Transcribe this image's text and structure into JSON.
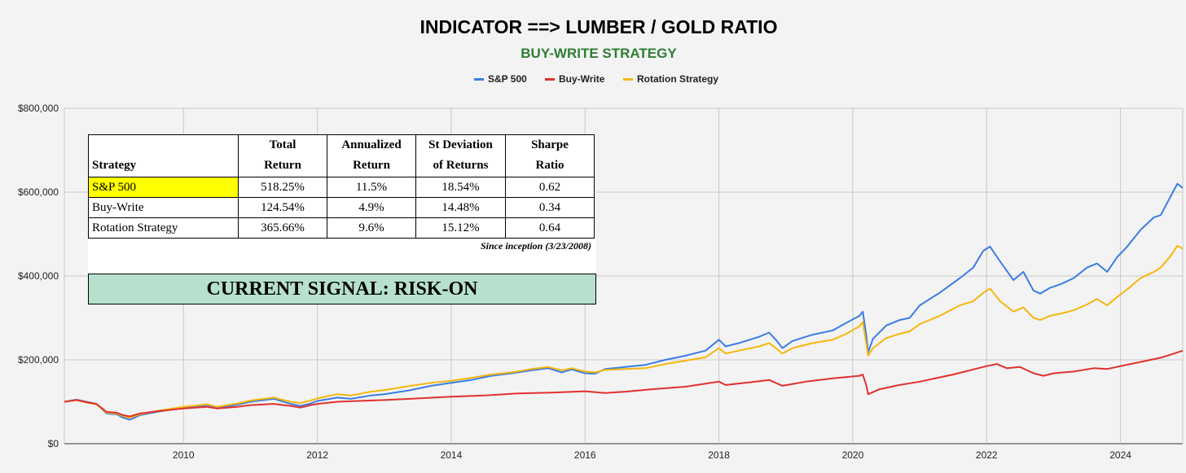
{
  "colors": {
    "background": "#f3f3f3",
    "sp500": "#3b7de4",
    "buywrite": "#e0312f",
    "rotation": "#f5b70d",
    "subtitle": "#2e7d32",
    "signal_bg": "#b7e1cd",
    "highlight": "#ffff00"
  },
  "chart_data": {
    "type": "line",
    "title": "INDICATOR ==> LUMBER / GOLD RATIO",
    "subtitle": "BUY-WRITE STRATEGY",
    "legend_position": "top-center",
    "grid": true,
    "xlim": [
      2008.22,
      2024.93
    ],
    "ylim": [
      0,
      800000
    ],
    "x_ticks": [
      2010,
      2012,
      2014,
      2016,
      2018,
      2020,
      2022,
      2024
    ],
    "x_tick_labels": [
      "2010",
      "2012",
      "2014",
      "2016",
      "2018",
      "2020",
      "2022",
      "2024"
    ],
    "y_ticks": [
      0,
      200000,
      400000,
      600000,
      800000
    ],
    "y_tick_labels": [
      "$0",
      "$200,000",
      "$400,000",
      "$600,000",
      "$800,000"
    ],
    "series": [
      {
        "name": "S&P 500",
        "color": "#3b7de4",
        "points": [
          [
            2008.22,
            100000
          ],
          [
            2008.4,
            105000
          ],
          [
            2008.55,
            100000
          ],
          [
            2008.7,
            95000
          ],
          [
            2008.85,
            72000
          ],
          [
            2009.0,
            70000
          ],
          [
            2009.1,
            62000
          ],
          [
            2009.2,
            57000
          ],
          [
            2009.35,
            68000
          ],
          [
            2009.6,
            76000
          ],
          [
            2010.0,
            86000
          ],
          [
            2010.35,
            92000
          ],
          [
            2010.5,
            84000
          ],
          [
            2010.8,
            93000
          ],
          [
            2011.0,
            100000
          ],
          [
            2011.35,
            107000
          ],
          [
            2011.6,
            95000
          ],
          [
            2011.75,
            90000
          ],
          [
            2011.9,
            96000
          ],
          [
            2012.0,
            102000
          ],
          [
            2012.3,
            110000
          ],
          [
            2012.5,
            107000
          ],
          [
            2012.8,
            115000
          ],
          [
            2013.0,
            118000
          ],
          [
            2013.4,
            128000
          ],
          [
            2013.7,
            138000
          ],
          [
            2014.0,
            145000
          ],
          [
            2014.3,
            152000
          ],
          [
            2014.6,
            162000
          ],
          [
            2014.9,
            168000
          ],
          [
            2015.2,
            175000
          ],
          [
            2015.45,
            180000
          ],
          [
            2015.65,
            170000
          ],
          [
            2015.8,
            177000
          ],
          [
            2016.0,
            168000
          ],
          [
            2016.15,
            167000
          ],
          [
            2016.3,
            178000
          ],
          [
            2016.6,
            183000
          ],
          [
            2016.9,
            188000
          ],
          [
            2017.2,
            200000
          ],
          [
            2017.5,
            210000
          ],
          [
            2017.8,
            222000
          ],
          [
            2018.0,
            248000
          ],
          [
            2018.1,
            232000
          ],
          [
            2018.3,
            240000
          ],
          [
            2018.6,
            255000
          ],
          [
            2018.75,
            265000
          ],
          [
            2018.85,
            248000
          ],
          [
            2018.95,
            228000
          ],
          [
            2019.1,
            245000
          ],
          [
            2019.4,
            260000
          ],
          [
            2019.7,
            270000
          ],
          [
            2019.9,
            288000
          ],
          [
            2020.1,
            305000
          ],
          [
            2020.15,
            315000
          ],
          [
            2020.2,
            260000
          ],
          [
            2020.23,
            218000
          ],
          [
            2020.3,
            250000
          ],
          [
            2020.5,
            282000
          ],
          [
            2020.7,
            295000
          ],
          [
            2020.85,
            300000
          ],
          [
            2021.0,
            330000
          ],
          [
            2021.3,
            360000
          ],
          [
            2021.6,
            395000
          ],
          [
            2021.8,
            420000
          ],
          [
            2021.95,
            460000
          ],
          [
            2022.05,
            470000
          ],
          [
            2022.2,
            435000
          ],
          [
            2022.4,
            390000
          ],
          [
            2022.55,
            410000
          ],
          [
            2022.7,
            365000
          ],
          [
            2022.8,
            358000
          ],
          [
            2022.95,
            372000
          ],
          [
            2023.1,
            380000
          ],
          [
            2023.3,
            395000
          ],
          [
            2023.5,
            420000
          ],
          [
            2023.65,
            430000
          ],
          [
            2023.8,
            410000
          ],
          [
            2023.95,
            445000
          ],
          [
            2024.1,
            470000
          ],
          [
            2024.3,
            510000
          ],
          [
            2024.5,
            540000
          ],
          [
            2024.6,
            545000
          ],
          [
            2024.75,
            590000
          ],
          [
            2024.85,
            620000
          ],
          [
            2024.93,
            610000
          ]
        ]
      },
      {
        "name": "Buy-Write",
        "color": "#e0312f",
        "points": [
          [
            2008.22,
            100000
          ],
          [
            2008.4,
            104000
          ],
          [
            2008.55,
            99000
          ],
          [
            2008.7,
            95000
          ],
          [
            2008.85,
            76000
          ],
          [
            2009.0,
            74000
          ],
          [
            2009.1,
            68000
          ],
          [
            2009.2,
            65000
          ],
          [
            2009.35,
            72000
          ],
          [
            2009.6,
            77000
          ],
          [
            2010.0,
            84000
          ],
          [
            2010.35,
            88000
          ],
          [
            2010.5,
            84000
          ],
          [
            2010.8,
            88000
          ],
          [
            2011.0,
            92000
          ],
          [
            2011.35,
            95000
          ],
          [
            2011.6,
            90000
          ],
          [
            2011.75,
            86000
          ],
          [
            2011.9,
            92000
          ],
          [
            2012.0,
            95000
          ],
          [
            2012.3,
            100000
          ],
          [
            2012.6,
            102000
          ],
          [
            2013.0,
            104000
          ],
          [
            2013.5,
            108000
          ],
          [
            2014.0,
            112000
          ],
          [
            2014.5,
            115000
          ],
          [
            2015.0,
            120000
          ],
          [
            2015.5,
            122000
          ],
          [
            2016.0,
            125000
          ],
          [
            2016.3,
            121000
          ],
          [
            2016.6,
            124000
          ],
          [
            2017.0,
            130000
          ],
          [
            2017.5,
            136000
          ],
          [
            2018.0,
            148000
          ],
          [
            2018.1,
            140000
          ],
          [
            2018.5,
            147000
          ],
          [
            2018.75,
            152000
          ],
          [
            2018.95,
            138000
          ],
          [
            2019.3,
            148000
          ],
          [
            2019.7,
            156000
          ],
          [
            2020.1,
            162000
          ],
          [
            2020.15,
            165000
          ],
          [
            2020.2,
            140000
          ],
          [
            2020.23,
            118000
          ],
          [
            2020.4,
            130000
          ],
          [
            2020.7,
            140000
          ],
          [
            2021.0,
            148000
          ],
          [
            2021.5,
            165000
          ],
          [
            2022.0,
            185000
          ],
          [
            2022.15,
            190000
          ],
          [
            2022.3,
            180000
          ],
          [
            2022.5,
            183000
          ],
          [
            2022.7,
            168000
          ],
          [
            2022.85,
            162000
          ],
          [
            2023.0,
            168000
          ],
          [
            2023.3,
            172000
          ],
          [
            2023.6,
            180000
          ],
          [
            2023.8,
            178000
          ],
          [
            2024.0,
            185000
          ],
          [
            2024.3,
            195000
          ],
          [
            2024.6,
            205000
          ],
          [
            2024.8,
            215000
          ],
          [
            2024.93,
            222000
          ]
        ]
      },
      {
        "name": "Rotation Strategy",
        "color": "#f5b70d",
        "points": [
          [
            2008.22,
            100000
          ],
          [
            2008.4,
            104000
          ],
          [
            2008.55,
            98000
          ],
          [
            2008.7,
            94000
          ],
          [
            2008.85,
            74000
          ],
          [
            2009.0,
            72000
          ],
          [
            2009.1,
            66000
          ],
          [
            2009.2,
            62000
          ],
          [
            2009.35,
            70000
          ],
          [
            2009.6,
            78000
          ],
          [
            2010.0,
            88000
          ],
          [
            2010.35,
            94000
          ],
          [
            2010.5,
            88000
          ],
          [
            2010.8,
            96000
          ],
          [
            2011.0,
            103000
          ],
          [
            2011.35,
            110000
          ],
          [
            2011.6,
            100000
          ],
          [
            2011.75,
            97000
          ],
          [
            2011.9,
            103000
          ],
          [
            2012.0,
            108000
          ],
          [
            2012.3,
            118000
          ],
          [
            2012.5,
            115000
          ],
          [
            2012.8,
            124000
          ],
          [
            2013.0,
            128000
          ],
          [
            2013.4,
            138000
          ],
          [
            2013.7,
            145000
          ],
          [
            2014.0,
            150000
          ],
          [
            2014.3,
            157000
          ],
          [
            2014.6,
            165000
          ],
          [
            2014.9,
            170000
          ],
          [
            2015.2,
            178000
          ],
          [
            2015.45,
            183000
          ],
          [
            2015.65,
            175000
          ],
          [
            2015.8,
            180000
          ],
          [
            2016.0,
            172000
          ],
          [
            2016.15,
            170000
          ],
          [
            2016.3,
            176000
          ],
          [
            2016.6,
            178000
          ],
          [
            2016.9,
            180000
          ],
          [
            2017.2,
            190000
          ],
          [
            2017.5,
            198000
          ],
          [
            2017.8,
            206000
          ],
          [
            2018.0,
            228000
          ],
          [
            2018.1,
            215000
          ],
          [
            2018.3,
            222000
          ],
          [
            2018.6,
            232000
          ],
          [
            2018.75,
            240000
          ],
          [
            2018.85,
            228000
          ],
          [
            2018.95,
            215000
          ],
          [
            2019.1,
            228000
          ],
          [
            2019.4,
            240000
          ],
          [
            2019.7,
            248000
          ],
          [
            2019.9,
            262000
          ],
          [
            2020.1,
            280000
          ],
          [
            2020.15,
            290000
          ],
          [
            2020.2,
            240000
          ],
          [
            2020.23,
            210000
          ],
          [
            2020.3,
            228000
          ],
          [
            2020.5,
            252000
          ],
          [
            2020.7,
            262000
          ],
          [
            2020.85,
            268000
          ],
          [
            2021.0,
            285000
          ],
          [
            2021.3,
            305000
          ],
          [
            2021.6,
            330000
          ],
          [
            2021.8,
            340000
          ],
          [
            2021.95,
            360000
          ],
          [
            2022.05,
            370000
          ],
          [
            2022.2,
            340000
          ],
          [
            2022.4,
            315000
          ],
          [
            2022.55,
            325000
          ],
          [
            2022.7,
            300000
          ],
          [
            2022.8,
            295000
          ],
          [
            2022.95,
            305000
          ],
          [
            2023.1,
            310000
          ],
          [
            2023.3,
            318000
          ],
          [
            2023.5,
            332000
          ],
          [
            2023.65,
            345000
          ],
          [
            2023.8,
            330000
          ],
          [
            2023.95,
            350000
          ],
          [
            2024.1,
            368000
          ],
          [
            2024.3,
            395000
          ],
          [
            2024.5,
            410000
          ],
          [
            2024.6,
            420000
          ],
          [
            2024.75,
            448000
          ],
          [
            2024.85,
            472000
          ],
          [
            2024.93,
            465000
          ]
        ]
      }
    ]
  },
  "stats_table": {
    "headers": [
      {
        "line1": "",
        "line2": "Strategy"
      },
      {
        "line1": "Total",
        "line2": "Return"
      },
      {
        "line1": "Annualized",
        "line2": "Return"
      },
      {
        "line1": "St Deviation",
        "line2": "of Returns"
      },
      {
        "line1": "Sharpe",
        "line2": "Ratio"
      }
    ],
    "rows": [
      {
        "strategy": "S&P 500",
        "total_return": "518.25%",
        "annualized_return": "11.5%",
        "std_dev": "18.54%",
        "sharpe": "0.62",
        "highlight": true
      },
      {
        "strategy": "Buy-Write",
        "total_return": "124.54%",
        "annualized_return": "4.9%",
        "std_dev": "14.48%",
        "sharpe": "0.34",
        "highlight": false
      },
      {
        "strategy": "Rotation Strategy",
        "total_return": "365.66%",
        "annualized_return": "9.6%",
        "std_dev": "15.12%",
        "sharpe": "0.64",
        "highlight": false
      }
    ],
    "note": "Since inception (3/23/2008)",
    "signal": "CURRENT SIGNAL: RISK-ON"
  }
}
